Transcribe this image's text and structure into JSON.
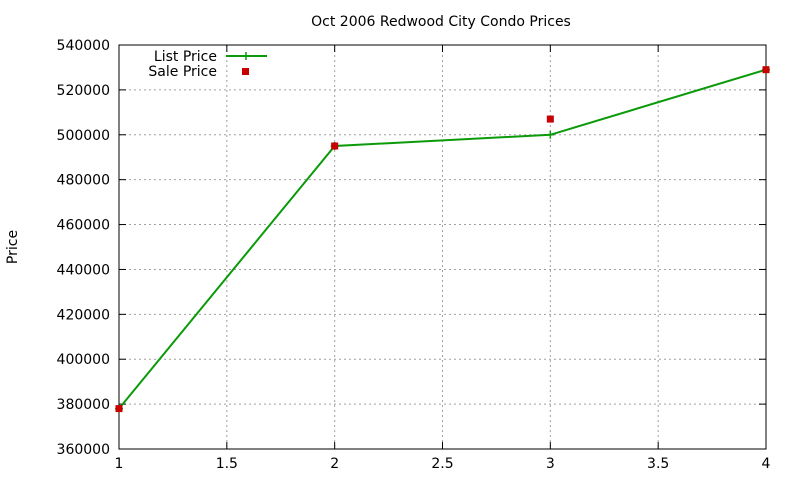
{
  "chart_data": {
    "type": "line",
    "title": "Oct 2006 Redwood City Condo Prices",
    "xlabel": "",
    "ylabel": "Price",
    "xlim": [
      1,
      4
    ],
    "ylim": [
      360000,
      540000
    ],
    "xticks": [
      1,
      1.5,
      2,
      2.5,
      3,
      3.5,
      4
    ],
    "xtick_labels": [
      "1",
      "1.5",
      "2",
      "2.5",
      "3",
      "3.5",
      "4"
    ],
    "yticks": [
      360000,
      380000,
      400000,
      420000,
      440000,
      460000,
      480000,
      500000,
      520000,
      540000
    ],
    "ytick_labels": [
      "360000",
      "380000",
      "400000",
      "420000",
      "440000",
      "460000",
      "480000",
      "500000",
      "520000",
      "540000"
    ],
    "grid": true,
    "legend_position": "top-left",
    "series": [
      {
        "name": "List Price",
        "style": "line-points",
        "color": "#0a9a0a",
        "x": [
          1,
          2,
          3,
          4
        ],
        "values": [
          378000,
          495000,
          500000,
          529000
        ]
      },
      {
        "name": "Sale Price",
        "style": "points",
        "color": "#c80000",
        "x": [
          1,
          2,
          3,
          4
        ],
        "values": [
          378000,
          495000,
          507000,
          529000
        ]
      }
    ]
  }
}
